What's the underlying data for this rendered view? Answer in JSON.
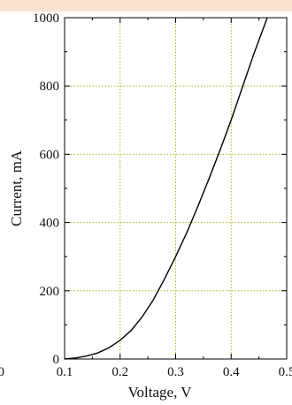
{
  "header_band_color": "#fbe3d2",
  "chart_data": {
    "type": "line",
    "xlabel": "Voltage, V",
    "ylabel": "Current, mA",
    "xlim": [
      0.1,
      0.5
    ],
    "ylim": [
      0,
      1000
    ],
    "x_ticks": [
      "0.1",
      "0.2",
      "0.3",
      "0.4",
      "0.5"
    ],
    "y_ticks": [
      "0",
      "200",
      "400",
      "600",
      "800",
      "1000"
    ],
    "left_partial_tick": "0",
    "grid": true,
    "grid_color": "#b3b320",
    "line_color": "#000000",
    "series": [
      {
        "x": [
          0.1,
          0.12,
          0.14,
          0.16,
          0.18,
          0.2,
          0.22,
          0.24,
          0.26,
          0.28,
          0.3,
          0.32,
          0.34,
          0.36,
          0.38,
          0.4,
          0.42,
          0.44,
          0.465
        ],
        "y": [
          0,
          3,
          9,
          18,
          33,
          55,
          84,
          124,
          174,
          235,
          300,
          370,
          447,
          528,
          612,
          700,
          795,
          890,
          1000
        ]
      }
    ]
  }
}
